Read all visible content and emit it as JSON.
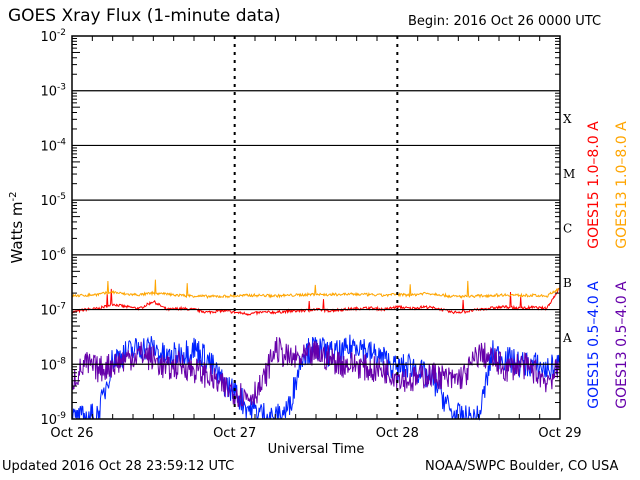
{
  "header": {
    "title": "GOES Xray Flux (1-minute data)",
    "begin": "Begin:  2016 Oct 26 0000 UTC"
  },
  "footer": {
    "updated": "Updated 2016 Oct 28 23:59:12 UTC",
    "credit": "NOAA/SWPC Boulder, CO USA"
  },
  "chart_data": {
    "type": "line",
    "title": "GOES Xray Flux (1-minute data)",
    "xlabel": "Universal Time",
    "ylabel": "Watts m",
    "ylabel_sup": "-2",
    "yscale": "log",
    "ylim": [
      1e-09,
      0.01
    ],
    "y_ticks": [
      {
        "base": "10",
        "exp": "-2",
        "value": -2
      },
      {
        "base": "10",
        "exp": "-3",
        "value": -3
      },
      {
        "base": "10",
        "exp": "-4",
        "value": -4
      },
      {
        "base": "10",
        "exp": "-5",
        "value": -5
      },
      {
        "base": "10",
        "exp": "-6",
        "value": -6
      },
      {
        "base": "10",
        "exp": "-7",
        "value": -7
      },
      {
        "base": "10",
        "exp": "-8",
        "value": -8
      },
      {
        "base": "10",
        "exp": "-9",
        "value": -9
      }
    ],
    "x_ticks": [
      "Oct 26",
      "Oct 27",
      "Oct 28",
      "Oct 29"
    ],
    "xlim_hours": [
      0,
      72
    ],
    "flare_classes": [
      {
        "label": "X",
        "value": -4
      },
      {
        "label": "M",
        "value": -5
      },
      {
        "label": "C",
        "value": -6
      },
      {
        "label": "B",
        "value": -7
      },
      {
        "label": "A",
        "value": -8
      }
    ],
    "x_hours_step": 2,
    "series": [
      {
        "name": "GOES15 1.0-8.0 A",
        "color": "#ff0000",
        "log10_values": [
          -7.05,
          -7.0,
          -6.98,
          -6.9,
          -6.95,
          -6.98,
          -6.85,
          -7.0,
          -6.98,
          -7.0,
          -7.05,
          -7.02,
          -7.05,
          -7.08,
          -7.05,
          -7.05,
          -7.03,
          -7.02,
          -7.0,
          -7.02,
          -7.0,
          -6.98,
          -6.97,
          -7.0,
          -6.95,
          -6.98,
          -6.95,
          -6.98,
          -7.05,
          -7.04,
          -7.0,
          -6.97,
          -6.95,
          -6.98,
          -6.96,
          -6.98,
          -6.6
        ]
      },
      {
        "name": "GOES13 1.0-8.0 A",
        "color": "#ffa500",
        "log10_values": [
          -6.75,
          -6.74,
          -6.72,
          -6.68,
          -6.72,
          -6.73,
          -6.7,
          -6.72,
          -6.74,
          -6.75,
          -6.76,
          -6.76,
          -6.75,
          -6.74,
          -6.74,
          -6.75,
          -6.74,
          -6.73,
          -6.72,
          -6.73,
          -6.72,
          -6.72,
          -6.73,
          -6.74,
          -6.72,
          -6.74,
          -6.7,
          -6.72,
          -6.76,
          -6.76,
          -6.75,
          -6.74,
          -6.73,
          -6.74,
          -6.74,
          -6.76,
          -6.6
        ]
      },
      {
        "name": "GOES15 0.5-4.0 A",
        "color": "#0022ff",
        "log10_values": [
          -9.0,
          -9.0,
          -8.9,
          -7.9,
          -7.8,
          -7.7,
          -7.7,
          -7.9,
          -7.8,
          -7.7,
          -7.9,
          -8.3,
          -8.5,
          -8.8,
          -8.9,
          -9.0,
          -8.8,
          -7.8,
          -7.7,
          -7.8,
          -7.8,
          -7.6,
          -7.8,
          -7.9,
          -8.1,
          -8.0,
          -8.2,
          -8.4,
          -8.9,
          -9.0,
          -9.0,
          -7.8,
          -7.9,
          -8.0,
          -8.0,
          -8.1,
          -8.0
        ]
      },
      {
        "name": "GOES13 0.5-4.0 A",
        "color": "#6600aa",
        "log10_values": [
          -8.3,
          -8.0,
          -8.1,
          -8.0,
          -7.9,
          -7.8,
          -7.9,
          -8.1,
          -8.0,
          -8.1,
          -8.2,
          -8.4,
          -8.5,
          -8.6,
          -8.4,
          -7.7,
          -7.9,
          -7.9,
          -7.8,
          -7.9,
          -8.0,
          -8.0,
          -8.1,
          -8.1,
          -8.2,
          -8.3,
          -8.2,
          -8.2,
          -8.3,
          -8.2,
          -7.8,
          -7.9,
          -8.1,
          -8.0,
          -8.1,
          -8.3,
          -8.1
        ]
      }
    ]
  }
}
